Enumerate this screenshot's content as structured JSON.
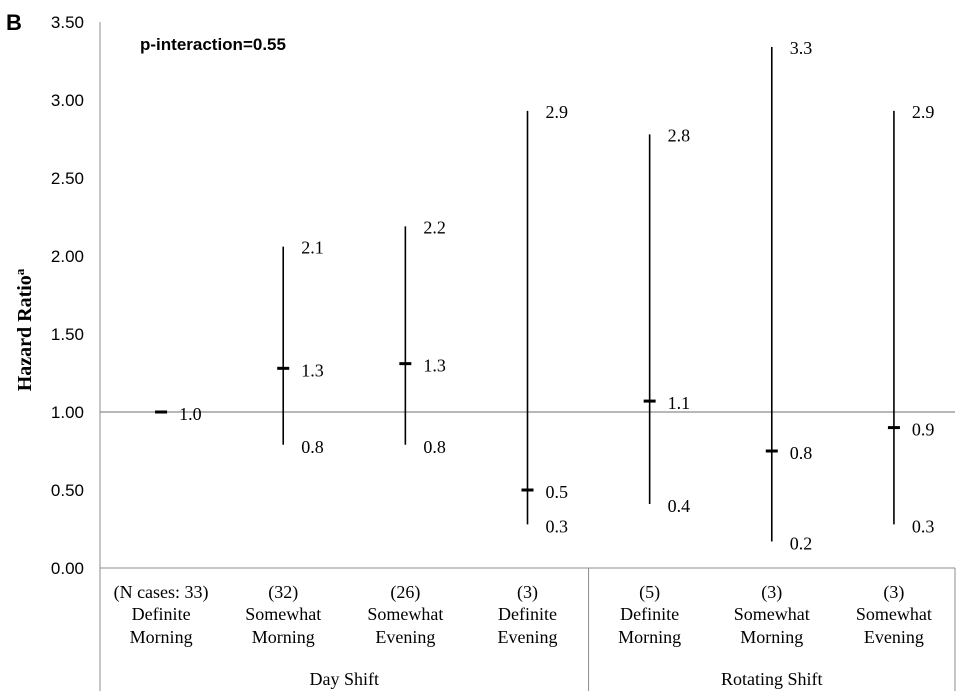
{
  "panel_label": "B",
  "chart_data": {
    "type": "scatter",
    "annotation": "p-interaction=0.55",
    "ylabel": "Hazard Ratio",
    "ylabel_superscript": "a",
    "ylim": [
      0,
      3.5
    ],
    "yticks": [
      "0.00",
      "0.50",
      "1.00",
      "1.50",
      "2.00",
      "2.50",
      "3.00",
      "3.50"
    ],
    "reference_line": 1.0,
    "grid": false,
    "groups": [
      {
        "label": "Day Shift",
        "start": 0,
        "end": 3
      },
      {
        "label": "Rotating Shift",
        "start": 4,
        "end": 6
      }
    ],
    "categories": [
      {
        "cases": "(N cases: 33)",
        "line1": "Definite",
        "line2": "Morning"
      },
      {
        "cases": "(32)",
        "line1": "Somewhat",
        "line2": "Morning"
      },
      {
        "cases": "(26)",
        "line1": "Somewhat",
        "line2": "Evening"
      },
      {
        "cases": "(3)",
        "line1": "Definite",
        "line2": "Evening"
      },
      {
        "cases": "(5)",
        "line1": "Definite",
        "line2": "Morning"
      },
      {
        "cases": "(3)",
        "line1": "Somewhat",
        "line2": "Morning"
      },
      {
        "cases": "(3)",
        "line1": "Somewhat",
        "line2": "Evening"
      }
    ],
    "points": [
      {
        "hr": 1.0,
        "lower": null,
        "upper": null,
        "hr_label": "1.0",
        "lower_label": "",
        "upper_label": ""
      },
      {
        "hr": 1.28,
        "lower": 0.79,
        "upper": 2.06,
        "hr_label": "1.3",
        "lower_label": "0.8",
        "upper_label": "2.1"
      },
      {
        "hr": 1.31,
        "lower": 0.79,
        "upper": 2.19,
        "hr_label": "1.3",
        "lower_label": "0.8",
        "upper_label": "2.2"
      },
      {
        "hr": 0.5,
        "lower": 0.28,
        "upper": 2.93,
        "hr_label": "0.5",
        "lower_label": "0.3",
        "upper_label": "2.9"
      },
      {
        "hr": 1.07,
        "lower": 0.41,
        "upper": 2.78,
        "hr_label": "1.1",
        "lower_label": "0.4",
        "upper_label": "2.8"
      },
      {
        "hr": 0.75,
        "lower": 0.17,
        "upper": 3.34,
        "hr_label": "0.8",
        "lower_label": "0.2",
        "upper_label": "3.3"
      },
      {
        "hr": 0.9,
        "lower": 0.28,
        "upper": 2.93,
        "hr_label": "0.9",
        "lower_label": "0.3",
        "upper_label": "2.9"
      }
    ],
    "colors": {
      "marks": "#000000",
      "axis": "#8c8c8c",
      "reference": "#8c8c8c"
    }
  }
}
